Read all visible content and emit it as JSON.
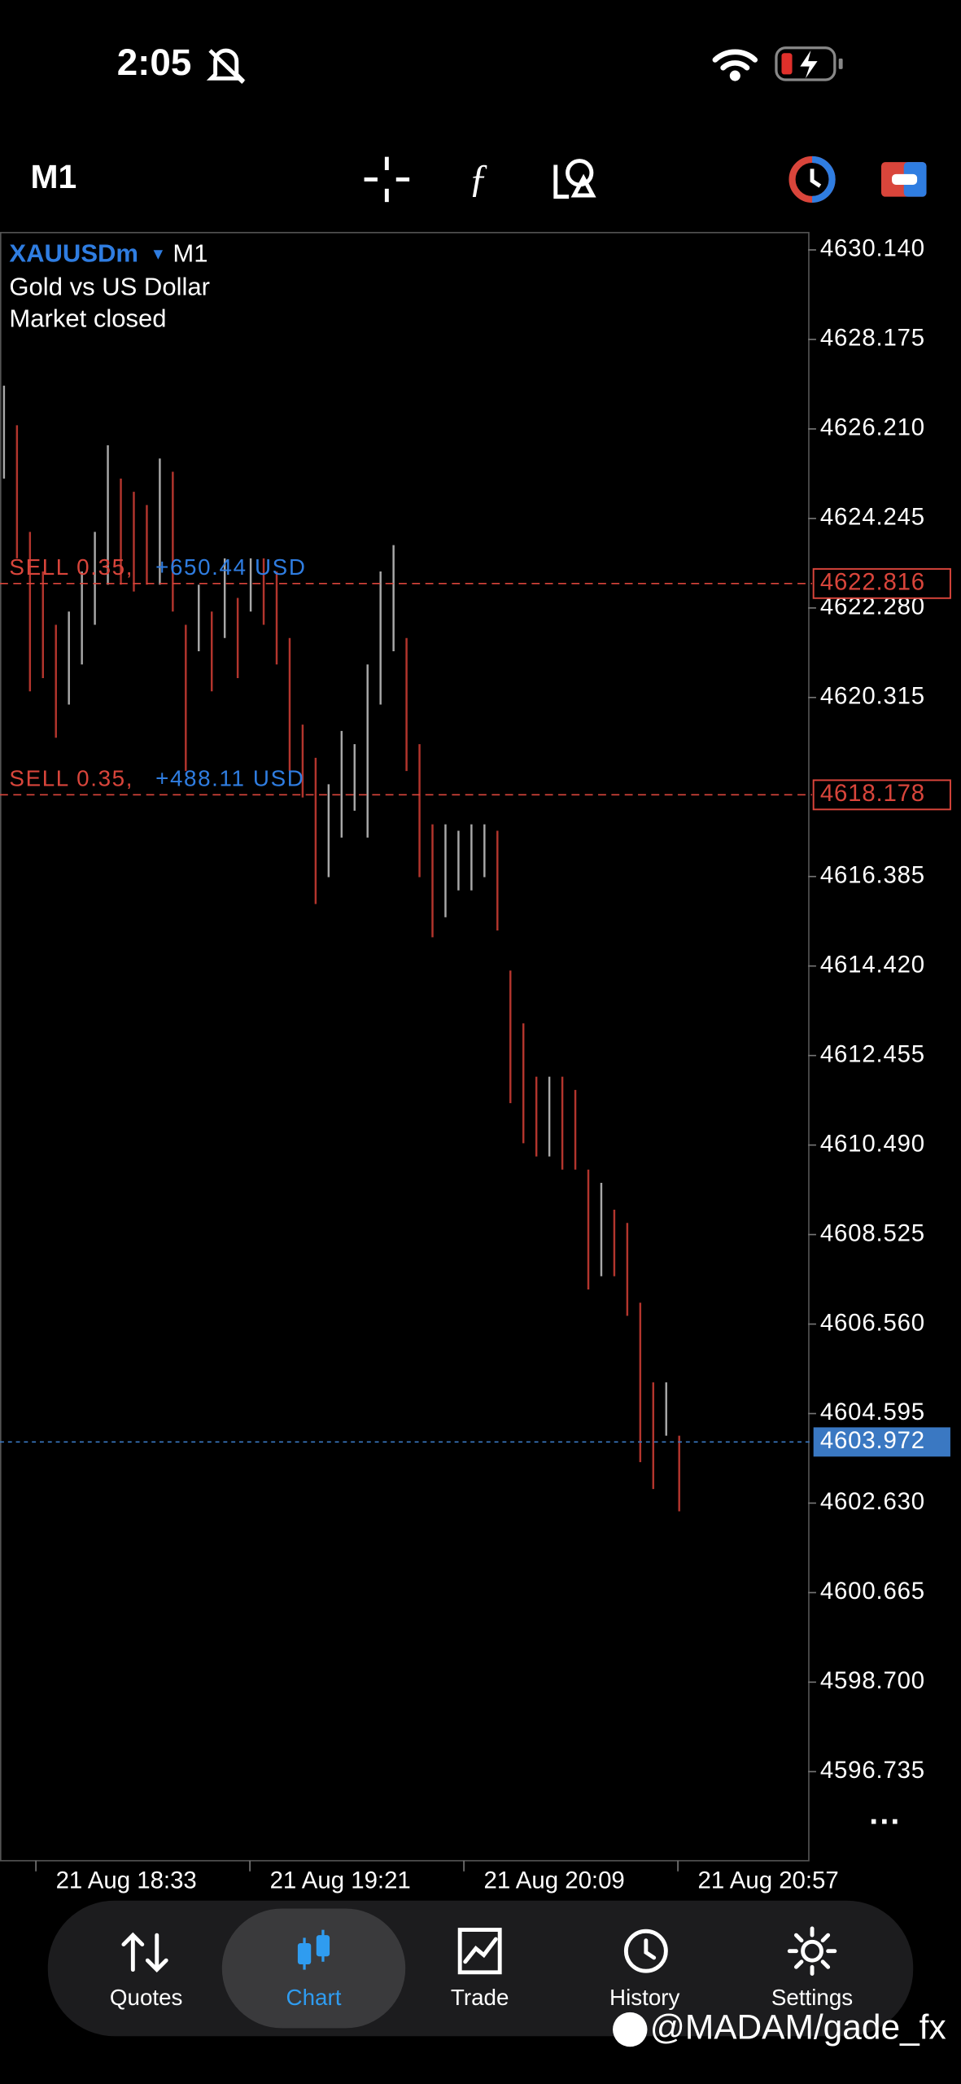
{
  "status_bar": {
    "time": "2:05"
  },
  "toolbar": {
    "timeframe": "M1"
  },
  "chart_data": {
    "type": "ohlc",
    "symbol": "XAUUSDm",
    "timeframe": "M1",
    "description": "Gold vs US Dollar",
    "status": "Market closed",
    "high": [
      4627.16,
      4626.29,
      4623.95,
      4623.08,
      4621.91,
      4622.2,
      4623.08,
      4623.95,
      4625.85,
      4625.12,
      4624.83,
      4624.54,
      4625.56,
      4625.27,
      4621.91,
      4622.79,
      4622.2,
      4623.37,
      4622.5,
      4623.37,
      4623.37,
      4623.08,
      4621.62,
      4619.72,
      4618.99,
      4618.41,
      4619.58,
      4619.29,
      4621.04,
      4623.08,
      4623.66,
      4621.62,
      4619.29,
      4617.53,
      4617.53,
      4617.39,
      4617.53,
      4617.53,
      4617.39,
      4614.32,
      4613.16,
      4611.99,
      4611.99,
      4611.99,
      4611.7,
      4609.95,
      4609.66,
      4609.07,
      4608.78,
      4607.03,
      4605.28,
      4605.28,
      4604.11
    ],
    "low": [
      4625.12,
      4623.37,
      4620.45,
      4620.74,
      4619.43,
      4620.16,
      4621.04,
      4621.91,
      4622.79,
      4622.79,
      4622.64,
      4622.79,
      4622.79,
      4622.2,
      4618.7,
      4621.33,
      4620.45,
      4621.62,
      4620.74,
      4622.2,
      4621.91,
      4621.04,
      4618.7,
      4618.12,
      4615.78,
      4616.37,
      4617.24,
      4617.83,
      4617.24,
      4620.16,
      4621.33,
      4618.7,
      4616.37,
      4615.05,
      4615.49,
      4616.08,
      4616.08,
      4616.37,
      4615.2,
      4611.41,
      4610.53,
      4610.24,
      4610.24,
      4609.95,
      4609.95,
      4607.32,
      4607.61,
      4607.61,
      4606.74,
      4603.53,
      4602.94,
      4604.11,
      4602.45
    ],
    "ylim": [
      4594.78,
      4630.52
    ],
    "yticks": [
      {
        "value": 4630.14,
        "label": "4630.140"
      },
      4628.175,
      {
        "value": 4626.21,
        "label": "4626.210"
      },
      4624.245,
      {
        "value": 4622.28,
        "label": "4622.280"
      },
      4620.315,
      4616.385,
      {
        "value": 4614.42,
        "label": "4614.420"
      },
      4612.455,
      {
        "value": 4610.49,
        "label": "4610.490"
      },
      4608.525,
      {
        "value": 4606.56,
        "label": "4606.560"
      },
      4604.595,
      {
        "value": 4602.63,
        "label": "4602.630"
      },
      4600.665,
      {
        "value": 4598.7,
        "label": "4598.700"
      },
      4596.735
    ],
    "x_labels": [
      "21 Aug 18:33",
      "21 Aug 19:21",
      "21 Aug 20:09",
      "21 Aug 20:57"
    ],
    "orders": [
      {
        "label": "SELL 0.35,",
        "profit": "+650.44 USD",
        "price": 4622.816
      },
      {
        "label": "SELL 0.35,",
        "profit": "+488.11 USD",
        "price": 4618.178
      }
    ],
    "current_price": 4603.972,
    "up_color": "#a8a8a8",
    "down_color": "#b3352d",
    "order_color": "#d9453b",
    "profit_color": "#2f7de1",
    "current_color": "#3a78c2"
  },
  "nav": {
    "items": [
      "Quotes",
      "Chart",
      "Trade",
      "History",
      "Settings"
    ],
    "active": 1
  },
  "watermark": "@MADAM/gade_fx"
}
